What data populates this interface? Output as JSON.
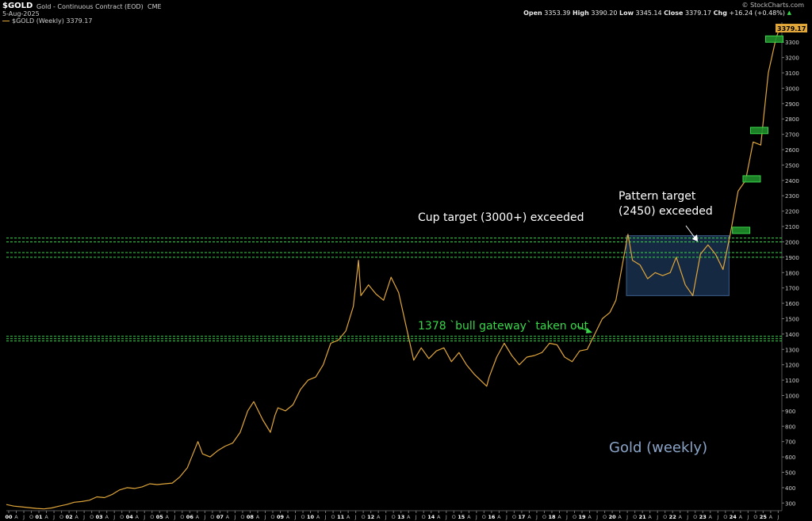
{
  "header": {
    "symbol": "$GOLD",
    "description": "Gold - Continuous Contract (EOD)",
    "exchange": "CME",
    "date": "5-Aug-2025",
    "legend": "$GOLD (Weekly) 3379.17",
    "brand": "© StockCharts.com",
    "ohlc": {
      "open_label": "Open",
      "open": "3353.39",
      "high_label": "High",
      "high": "3390.20",
      "low_label": "Low",
      "low": "3345.14",
      "close_label": "Close",
      "close": "3379.17",
      "chg_label": "Chg",
      "chg": "+16.24 (+0.48%)"
    }
  },
  "colors": {
    "background": "#000000",
    "price_line": "#e0a63a",
    "guide_lines": "#39d64a",
    "box_fill": "#1e3a5f",
    "annotation_white": "#ffffff",
    "annotation_green": "#39d64a",
    "watermark": "#8aa4c8"
  },
  "chart_data": {
    "type": "line",
    "title": "$GOLD (Weekly)",
    "watermark": "Gold (weekly)",
    "y_axis_side": "right",
    "ylim": [
      250,
      3430
    ],
    "yticks": [
      300,
      400,
      500,
      600,
      700,
      800,
      900,
      1000,
      1100,
      1200,
      1300,
      1400,
      1500,
      1600,
      1700,
      1800,
      1900,
      2000,
      2100,
      2200,
      2300,
      2400,
      2500,
      2600,
      2700,
      2800,
      2900,
      3000,
      3100,
      3200,
      3300,
      3400
    ],
    "xlim": [
      2000.0,
      2025.7
    ],
    "x_tick_labels": [
      "00",
      "A",
      "J",
      "O",
      "01",
      "A",
      "J",
      "O",
      "02",
      "A",
      "J",
      "O",
      "03",
      "A",
      "J",
      "O",
      "04",
      "A",
      "J",
      "O",
      "05",
      "A",
      "J",
      "O",
      "06",
      "A",
      "J",
      "O",
      "07",
      "A",
      "J",
      "O",
      "08",
      "A",
      "J",
      "O",
      "09",
      "A",
      "J",
      "O",
      "10",
      "A",
      "J",
      "O",
      "11",
      "A",
      "J",
      "O",
      "12",
      "A",
      "J",
      "O",
      "13",
      "A",
      "J",
      "O",
      "14",
      "A",
      "J",
      "O",
      "15",
      "A",
      "J",
      "O",
      "16",
      "A",
      "J",
      "O",
      "17",
      "A",
      "J",
      "O",
      "18",
      "A",
      "J",
      "O",
      "19",
      "A",
      "J",
      "O",
      "20",
      "A",
      "J",
      "O",
      "21",
      "A",
      "J",
      "O",
      "22",
      "A",
      "J",
      "O",
      "23",
      "A",
      "J",
      "O",
      "24",
      "A",
      "J",
      "O",
      "25",
      "A",
      "J"
    ],
    "series": [
      {
        "x": [
          2000.0,
          2000.25,
          2000.5,
          2000.75,
          2001.0,
          2001.25,
          2001.5,
          2001.75,
          2002.0,
          2002.25,
          2002.5,
          2002.75,
          2003.0,
          2003.25,
          2003.5,
          2003.75,
          2004.0,
          2004.25,
          2004.5,
          2004.75,
          2005.0,
          2005.25,
          2005.5,
          2005.75,
          2006.0,
          2006.35,
          2006.5,
          2006.75,
          2007.0,
          2007.25,
          2007.5,
          2007.75,
          2008.0,
          2008.2,
          2008.5,
          2008.75,
          2008.9,
          2009.0,
          2009.25,
          2009.5,
          2009.75,
          2010.0,
          2010.25,
          2010.5,
          2010.75,
          2011.0,
          2011.25,
          2011.5,
          2011.67,
          2011.75,
          2012.0,
          2012.25,
          2012.5,
          2012.75,
          2013.0,
          2013.25,
          2013.5,
          2013.75,
          2014.0,
          2014.25,
          2014.5,
          2014.75,
          2015.0,
          2015.25,
          2015.5,
          2015.92,
          2016.0,
          2016.25,
          2016.5,
          2016.75,
          2017.0,
          2017.25,
          2017.5,
          2017.75,
          2018.0,
          2018.25,
          2018.5,
          2018.75,
          2019.0,
          2019.25,
          2019.5,
          2019.75,
          2020.0,
          2020.2,
          2020.6,
          2020.75,
          2021.0,
          2021.25,
          2021.5,
          2021.75,
          2022.0,
          2022.2,
          2022.5,
          2022.75,
          2023.0,
          2023.25,
          2023.5,
          2023.75,
          2024.0,
          2024.25,
          2024.5,
          2024.75,
          2025.0,
          2025.25,
          2025.5,
          2025.6
        ],
        "y": [
          290,
          280,
          275,
          270,
          265,
          262,
          268,
          280,
          290,
          305,
          310,
          318,
          340,
          335,
          355,
          385,
          400,
          395,
          405,
          425,
          420,
          425,
          430,
          470,
          530,
          700,
          620,
          600,
          640,
          670,
          690,
          760,
          900,
          960,
          840,
          760,
          870,
          920,
          900,
          940,
          1040,
          1100,
          1120,
          1200,
          1340,
          1360,
          1420,
          1580,
          1880,
          1650,
          1720,
          1660,
          1620,
          1770,
          1670,
          1450,
          1230,
          1310,
          1240,
          1290,
          1310,
          1220,
          1280,
          1200,
          1140,
          1060,
          1120,
          1250,
          1340,
          1260,
          1200,
          1250,
          1260,
          1280,
          1340,
          1330,
          1250,
          1220,
          1290,
          1300,
          1400,
          1500,
          1540,
          1620,
          2050,
          1880,
          1850,
          1760,
          1800,
          1780,
          1800,
          1900,
          1720,
          1650,
          1920,
          1980,
          1920,
          1820,
          2060,
          2330,
          2400,
          2650,
          2630,
          3100,
          3320,
          3379
        ]
      }
    ],
    "horizontal_lines": [
      2025,
      2000,
      1930,
      1900,
      1385,
      1370,
      1355
    ],
    "target_box": {
      "x0": 2020.55,
      "x1": 2023.95,
      "y0": 1650,
      "y1": 2040
    },
    "target_markers": [
      {
        "x": 2024.35,
        "y": 2075
      },
      {
        "x": 2024.7,
        "y": 2410
      },
      {
        "x": 2024.95,
        "y": 2725
      },
      {
        "x": 2025.45,
        "y": 3320
      }
    ],
    "annotations": [
      {
        "text": "Cup target (3000+) exceeded",
        "color": "white"
      },
      {
        "text": "Pattern target",
        "color": "white"
      },
      {
        "text": "(2450) exceeded",
        "color": "white"
      },
      {
        "text": "1378 `bull gateway` taken out",
        "color": "green"
      }
    ],
    "last_value_label": "3379.17"
  }
}
